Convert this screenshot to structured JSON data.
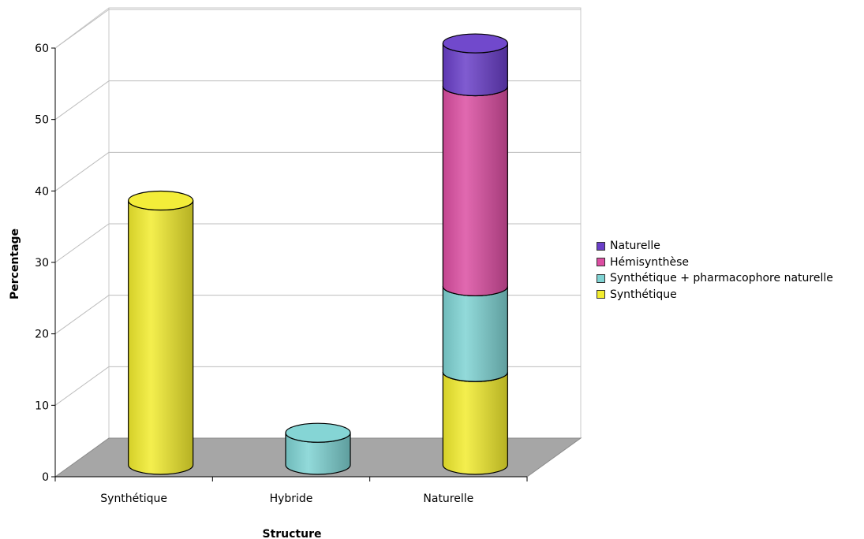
{
  "chart_data": {
    "type": "bar",
    "stacked": true,
    "style": "3d-cylinder",
    "categories": [
      "Synthétique",
      "Hybride",
      "Naturelle"
    ],
    "series": [
      {
        "name": "Synthétique",
        "color": "#f2ec2f",
        "values": [
          37,
          0,
          13
        ]
      },
      {
        "name": "Synthétique + pharmacophore naturelle",
        "color": "#7fd3d3",
        "values": [
          0,
          4.5,
          12
        ]
      },
      {
        "name": "Hémisynthèse",
        "color": "#dc4ea2",
        "values": [
          0,
          0,
          28
        ]
      },
      {
        "name": "Naturelle",
        "color": "#6a3fc9",
        "values": [
          0,
          0,
          6
        ]
      }
    ],
    "xlabel": "Structure",
    "ylabel": "Percentage",
    "ylim": [
      0,
      60
    ],
    "yticks": [
      0,
      10,
      20,
      30,
      40,
      50,
      60
    ],
    "grid": true,
    "legend_position": "right",
    "legend_order": [
      "Naturelle",
      "Hémisynthèse",
      "Synthétique + pharmacophore naturelle",
      "Synthétique"
    ]
  }
}
